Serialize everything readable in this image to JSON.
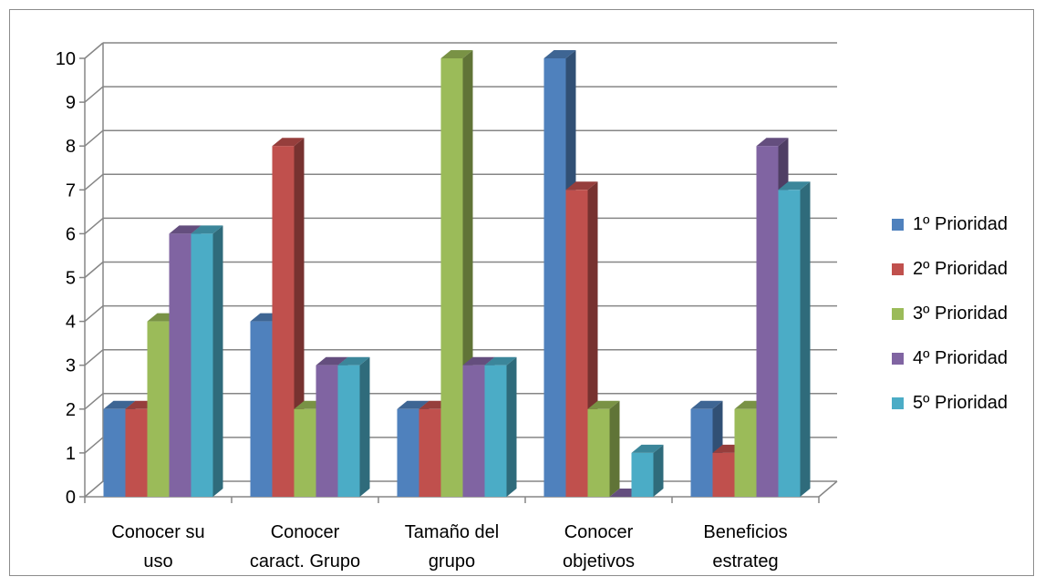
{
  "chart_data": {
    "type": "bar",
    "categories": [
      [
        "Conocer su",
        "uso"
      ],
      [
        "Conocer",
        "caract. Grupo"
      ],
      [
        "Tamaño del",
        "grupo"
      ],
      [
        "Conocer",
        "objetivos"
      ],
      [
        "Beneficios",
        "estrateg"
      ]
    ],
    "series": [
      {
        "name": "1º Prioridad",
        "color": "#4f81bd",
        "values": [
          2,
          4,
          2,
          10,
          2
        ]
      },
      {
        "name": "2º Prioridad",
        "color": "#c0504d",
        "values": [
          2,
          8,
          2,
          7,
          1
        ]
      },
      {
        "name": "3º Prioridad",
        "color": "#9bbb59",
        "values": [
          4,
          2,
          10,
          2,
          2
        ]
      },
      {
        "name": "4º Prioridad",
        "color": "#8064a2",
        "values": [
          6,
          3,
          3,
          0,
          8
        ]
      },
      {
        "name": "5º Prioridad",
        "color": "#4bacc6",
        "values": [
          6,
          3,
          3,
          1,
          7
        ]
      }
    ],
    "yticks": [
      "0",
      "1",
      "2",
      "3",
      "4",
      "5",
      "6",
      "7",
      "8",
      "9",
      "10"
    ],
    "ylim": [
      0,
      10
    ],
    "grid": true,
    "legend_position": "right",
    "title": "",
    "xlabel": "",
    "ylabel": ""
  }
}
